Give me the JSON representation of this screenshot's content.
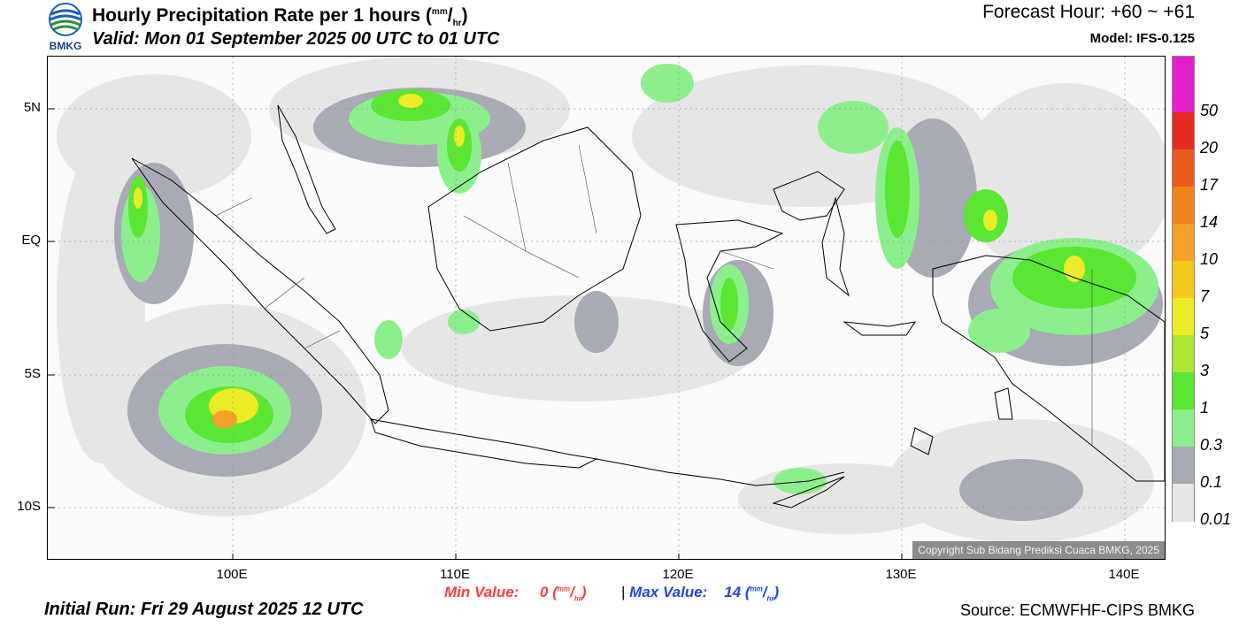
{
  "header": {
    "logo_text": "BMKG",
    "title": "Hourly Precipitation Rate per 1 hours",
    "unit_top": "mm",
    "unit_bottom": "hr",
    "valid": "Valid: Mon 01 September 2025 00 UTC to 01 UTC",
    "forecast_hour": "Forecast Hour: +60 ~ +61",
    "model": "Model: IFS-0.125"
  },
  "map": {
    "lat_labels": [
      "5N",
      "EQ",
      "5S",
      "10S"
    ],
    "lon_labels": [
      "100E",
      "110E",
      "120E",
      "130E",
      "140E"
    ],
    "copyright": "Copyright Sub Bidang Prediksi Cuaca BMKG, 2025"
  },
  "colorbar": {
    "labels": [
      "50",
      "20",
      "17",
      "14",
      "10",
      "7",
      "5",
      "3",
      "1",
      "0.3",
      "0.1",
      "0.01"
    ],
    "colors": [
      "#e41ec8",
      "#e62a1e",
      "#ea5a1e",
      "#f0821e",
      "#f5a02a",
      "#f5c81e",
      "#ebeb28",
      "#a8e632",
      "#5ae632",
      "#8cef8c",
      "#a8aab4",
      "#e6e6e6"
    ]
  },
  "footer": {
    "min_label": "Min Value:",
    "min_value": "0",
    "max_label": "Max Value:",
    "max_value": "14",
    "unit_top": "mm",
    "unit_bottom": "hr",
    "separator": "|",
    "initial_run": "Initial Run: Fri 29 August 2025 12 UTC",
    "source": "Source: ECMWFHF-CIPS BMKG"
  }
}
